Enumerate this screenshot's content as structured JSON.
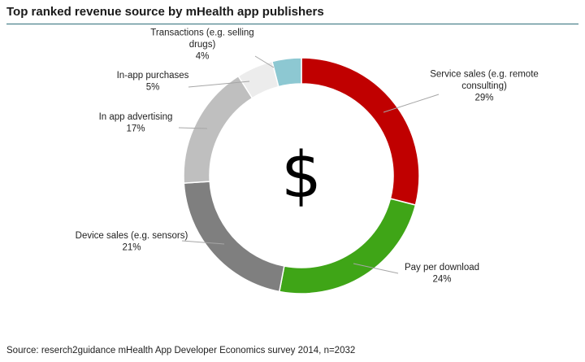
{
  "title": "Top ranked revenue source by mHealth app publishers",
  "center_symbol": "$",
  "source": "Source: reserch2guidance mHealth App Developer Economics survey 2014, n=2032",
  "chart_data": {
    "type": "pie",
    "variant": "donut",
    "slices": [
      {
        "label_lines": [
          "Service sales (e.g. remote",
          "consulting)"
        ],
        "value": 29,
        "value_label": "29%",
        "color": "#c00000"
      },
      {
        "label_lines": [
          "Pay per download"
        ],
        "value": 24,
        "value_label": "24%",
        "color": "#3fa517"
      },
      {
        "label_lines": [
          "Device sales (e.g. sensors)"
        ],
        "value": 21,
        "value_label": "21%",
        "color": "#7f7f7f"
      },
      {
        "label_lines": [
          "In app advertising"
        ],
        "value": 17,
        "value_label": "17%",
        "color": "#bfbfbf"
      },
      {
        "label_lines": [
          "In-app purchases"
        ],
        "value": 5,
        "value_label": "5%",
        "color": "#ececec"
      },
      {
        "label_lines": [
          "Transactions (e.g. selling",
          "drugs)"
        ],
        "value": 4,
        "value_label": "4%",
        "color": "#8dc8d2"
      }
    ],
    "legend": "none"
  }
}
